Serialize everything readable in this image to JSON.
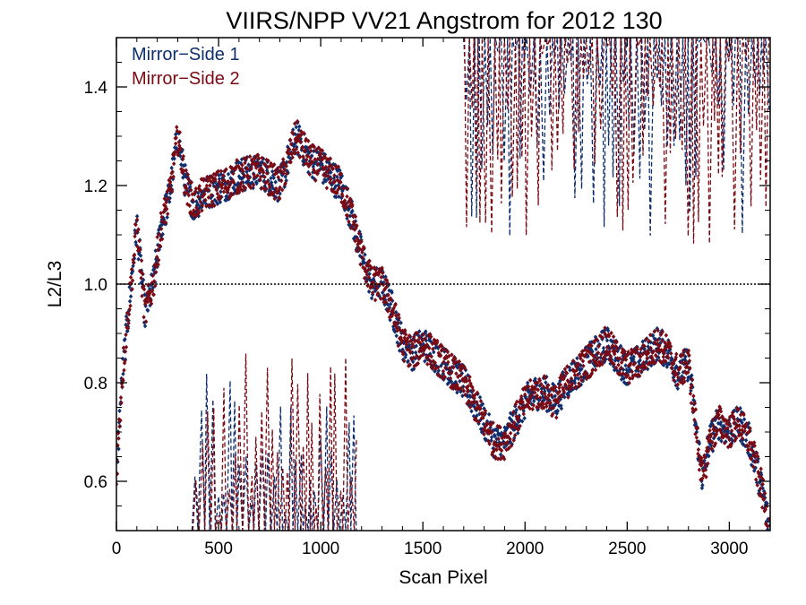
{
  "chart_data": {
    "type": "scatter",
    "title": "VIIRS/NPP VV21 Angstrom for 2012 130",
    "xlabel": "Scan Pixel",
    "ylabel": "L2/L3",
    "xlim": [
      0,
      3200
    ],
    "ylim": [
      0.5,
      1.5
    ],
    "x_ticks": [
      0,
      500,
      1000,
      1500,
      2000,
      2500,
      3000
    ],
    "x_tick_labels": [
      "0",
      "500",
      "1000",
      "1500",
      "2000",
      "2500",
      "3000"
    ],
    "y_ticks": [
      0.6,
      0.8,
      1.0,
      1.2,
      1.4
    ],
    "y_tick_labels": [
      "0.6",
      "0.8",
      "1.0",
      "1.2",
      "1.4"
    ],
    "reference_line": {
      "y": 1.0,
      "style": "dotted",
      "color": "#000000"
    },
    "legend": {
      "position": "top-left"
    },
    "series": [
      {
        "name": "Mirror−Side 1",
        "color": "#0e2e6e",
        "marker": "diamond",
        "line_style": "dashed"
      },
      {
        "name": "Mirror−Side 2",
        "color": "#7a0a14",
        "marker": "diamond",
        "line_style": "dashed"
      }
    ],
    "trend": {
      "x": [
        0,
        30,
        60,
        100,
        140,
        180,
        220,
        260,
        300,
        340,
        380,
        420,
        460,
        520,
        600,
        700,
        800,
        880,
        950,
        1000,
        1050,
        1100,
        1150,
        1200,
        1250,
        1300,
        1350,
        1400,
        1450,
        1500,
        1550,
        1600,
        1650,
        1700,
        1750,
        1800,
        1850,
        1900,
        1950,
        2000,
        2050,
        2100,
        2150,
        2200,
        2250,
        2300,
        2350,
        2400,
        2450,
        2500,
        2550,
        2600,
        2650,
        2700,
        2750,
        2800,
        2840,
        2870,
        2900,
        2950,
        3000,
        3050,
        3100,
        3150,
        3200
      ],
      "y": [
        0.62,
        0.82,
        0.95,
        1.12,
        0.94,
        1.0,
        1.12,
        1.18,
        1.3,
        1.2,
        1.16,
        1.18,
        1.19,
        1.2,
        1.22,
        1.23,
        1.2,
        1.3,
        1.25,
        1.24,
        1.22,
        1.2,
        1.14,
        1.06,
        1.0,
        1.0,
        0.95,
        0.88,
        0.86,
        0.88,
        0.86,
        0.84,
        0.82,
        0.8,
        0.76,
        0.72,
        0.68,
        0.68,
        0.72,
        0.76,
        0.78,
        0.78,
        0.76,
        0.8,
        0.82,
        0.84,
        0.86,
        0.88,
        0.85,
        0.83,
        0.84,
        0.86,
        0.88,
        0.86,
        0.82,
        0.84,
        0.7,
        0.6,
        0.68,
        0.72,
        0.7,
        0.72,
        0.68,
        0.6,
        0.5
      ],
      "scatter_spread": 0.035
    },
    "dashed_segments": [
      {
        "x_range": [
          370,
          1180
        ],
        "y_range": [
          0.5,
          0.86
        ]
      },
      {
        "x_range": [
          1700,
          3200
        ],
        "y_range": [
          1.08,
          1.5
        ]
      }
    ]
  }
}
